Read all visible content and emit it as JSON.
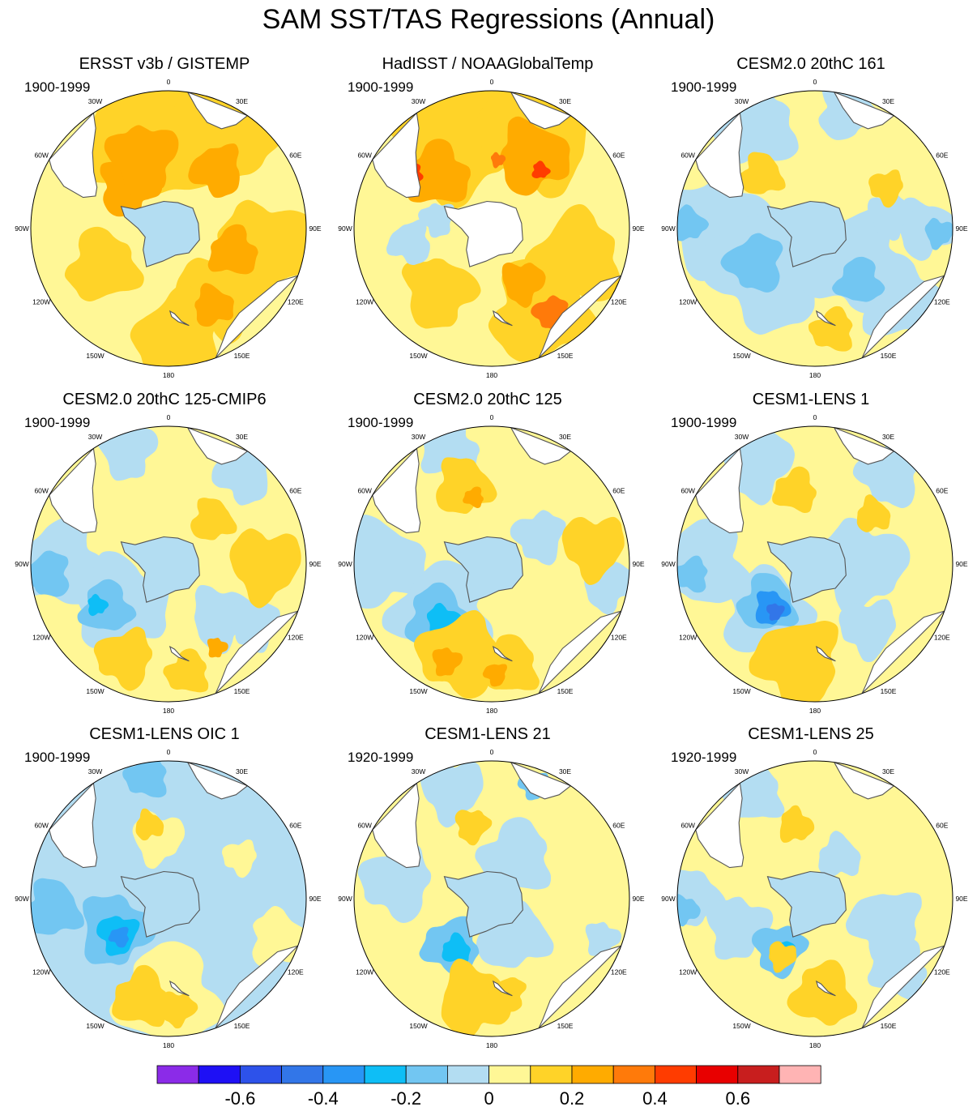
{
  "figure": {
    "title": "SAM SST/TAS Regressions (Annual)"
  },
  "chart_data": {
    "type": "heatmap",
    "projection": "south-polar-stereographic",
    "title": "SAM SST/TAS Regressions (Annual)",
    "colors": {
      "-0.7": "#8B2BE8",
      "-0.6": "#1E10F5",
      "-0.5": "#2D52EA",
      "-0.4": "#3276E8",
      "-0.3": "#2896F5",
      "-0.2": "#0EBEF6",
      "-0.1": "#72C6F2",
      "0.0": "#B3DDF2",
      "0.1": "#FFF796",
      "0.2": "#FFD328",
      "0.3": "#FFAB00",
      "0.4": "#FF7A0A",
      "0.5": "#FF3C00",
      "0.6": "#E80000",
      "0.7": "#C81E1E",
      "0.8": "#FFB4B4",
      "land": "#FFFFFF",
      "coast": "#555555"
    },
    "colorbar": {
      "levels": [
        -0.7,
        -0.6,
        -0.5,
        -0.4,
        -0.3,
        -0.2,
        -0.1,
        0,
        0.1,
        0.2,
        0.3,
        0.4,
        0.5,
        0.6,
        0.7
      ],
      "colors": [
        "#8B2BE8",
        "#1E10F5",
        "#2D52EA",
        "#3276E8",
        "#2896F5",
        "#0EBEF6",
        "#72C6F2",
        "#B3DDF2",
        "#FFF796",
        "#FFD328",
        "#FFAB00",
        "#FF7A0A",
        "#FF3C00",
        "#E80000",
        "#C81E1E",
        "#FFB4B4"
      ],
      "tick_labels": [
        "-0.6",
        "-0.4",
        "-0.2",
        "0",
        "0.2",
        "0.4",
        "0.6"
      ],
      "tick_values": [
        -0.6,
        -0.4,
        -0.2,
        0,
        0.2,
        0.4,
        0.6
      ]
    },
    "lon_labels": [
      "0",
      "30E",
      "60E",
      "90E",
      "120E",
      "150E",
      "180",
      "150W",
      "120W",
      "90W",
      "60W",
      "30W"
    ],
    "panels": [
      {
        "title": "ERSST v3b / GISTEMP",
        "period": "1900-1999",
        "background": 0.1,
        "antarctica": 0.0,
        "blobs": [
          {
            "r": 0.72,
            "lon": -10,
            "rr": 0.52,
            "v": 0.2,
            "a": 0.9
          },
          {
            "r": 0.8,
            "lon": 30,
            "rr": 0.38,
            "v": 0.2
          },
          {
            "r": 0.72,
            "lon": 100,
            "rr": 0.32,
            "v": 0.2
          },
          {
            "r": 0.6,
            "lon": 140,
            "rr": 0.3,
            "v": 0.2
          },
          {
            "r": 0.78,
            "lon": 175,
            "rr": 0.3,
            "v": 0.2
          },
          {
            "r": 0.55,
            "lon": -120,
            "rr": 0.25,
            "v": 0.2
          },
          {
            "r": 0.42,
            "lon": -45,
            "rr": 0.2,
            "v": 0.3
          },
          {
            "r": 0.55,
            "lon": -20,
            "rr": 0.24,
            "v": 0.3
          },
          {
            "r": 0.55,
            "lon": 40,
            "rr": 0.18,
            "v": 0.3
          },
          {
            "r": 0.5,
            "lon": 110,
            "rr": 0.17,
            "v": 0.3
          },
          {
            "r": 0.65,
            "lon": 150,
            "rr": 0.14,
            "v": 0.3
          }
        ]
      },
      {
        "title": "HadISST / NOAAGlobalTemp",
        "period": "1900-1999",
        "background": 0.1,
        "antarctica": "land",
        "blobs": [
          {
            "r": 0.75,
            "lon": -20,
            "rr": 0.45,
            "v": 0.2
          },
          {
            "r": 0.78,
            "lon": 25,
            "rr": 0.4,
            "v": 0.2
          },
          {
            "r": 0.65,
            "lon": 110,
            "rr": 0.32,
            "v": 0.2
          },
          {
            "r": 0.7,
            "lon": 150,
            "rr": 0.35,
            "v": 0.2
          },
          {
            "r": 0.6,
            "lon": -140,
            "rr": 0.25,
            "v": 0.2
          },
          {
            "r": 0.4,
            "lon": -80,
            "rr": 0.12,
            "v": 0.0
          },
          {
            "r": 0.6,
            "lon": -100,
            "rr": 0.15,
            "v": 0.0
          },
          {
            "r": 0.55,
            "lon": -45,
            "rr": 0.22,
            "v": 0.3
          },
          {
            "r": 0.6,
            "lon": 30,
            "rr": 0.25,
            "v": 0.3
          },
          {
            "r": 0.45,
            "lon": 150,
            "rr": 0.15,
            "v": 0.3
          },
          {
            "r": 0.75,
            "lon": 145,
            "rr": 0.12,
            "v": 0.4
          },
          {
            "r": 0.7,
            "lon": -55,
            "rr": 0.07,
            "v": 0.5
          },
          {
            "r": 0.55,
            "lon": 40,
            "rr": 0.06,
            "v": 0.5
          },
          {
            "r": 0.5,
            "lon": 5,
            "rr": 0.05,
            "v": 0.4
          }
        ]
      },
      {
        "title": "CESM2.0 20thC 161",
        "period": "1900-1999",
        "background": 0.1,
        "antarctica": 0.0,
        "blobs": [
          {
            "r": 0.85,
            "lon": -30,
            "rr": 0.28,
            "v": 0.0
          },
          {
            "r": 0.88,
            "lon": 15,
            "rr": 0.2,
            "v": 0.0
          },
          {
            "r": 0.7,
            "lon": -90,
            "rr": 0.35,
            "v": 0.0
          },
          {
            "r": 0.45,
            "lon": -130,
            "rr": 0.42,
            "v": 0.0
          },
          {
            "r": 0.4,
            "lon": 130,
            "rr": 0.35,
            "v": 0.0
          },
          {
            "r": 0.8,
            "lon": 130,
            "rr": 0.28,
            "v": 0.0
          },
          {
            "r": 0.8,
            "lon": 90,
            "rr": 0.2,
            "v": 0.0
          },
          {
            "r": 0.55,
            "lon": 80,
            "rr": 0.15,
            "v": 0.0
          },
          {
            "r": 0.5,
            "lon": -120,
            "rr": 0.2,
            "v": -0.1
          },
          {
            "r": 0.5,
            "lon": 140,
            "rr": 0.16,
            "v": -0.1
          },
          {
            "r": 0.92,
            "lon": -88,
            "rr": 0.12,
            "v": -0.1
          },
          {
            "r": 0.9,
            "lon": 92,
            "rr": 0.1,
            "v": -0.1
          },
          {
            "r": 0.6,
            "lon": 60,
            "rr": 0.12,
            "v": 0.2
          },
          {
            "r": 0.75,
            "lon": 170,
            "rr": 0.15,
            "v": 0.2
          },
          {
            "r": 0.55,
            "lon": -45,
            "rr": 0.15,
            "v": 0.2
          }
        ]
      },
      {
        "title": "CESM2.0 20thC 125-CMIP6",
        "period": "1900-1999",
        "background": 0.1,
        "antarctica": 0.0,
        "blobs": [
          {
            "r": 0.88,
            "lon": -20,
            "rr": 0.2,
            "v": 0.0
          },
          {
            "r": 0.85,
            "lon": 40,
            "rr": 0.2,
            "v": 0.0
          },
          {
            "r": 0.78,
            "lon": -90,
            "rr": 0.3,
            "v": 0.0
          },
          {
            "r": 0.45,
            "lon": -130,
            "rr": 0.32,
            "v": 0.0
          },
          {
            "r": 0.55,
            "lon": 135,
            "rr": 0.22,
            "v": 0.0
          },
          {
            "r": 0.75,
            "lon": 125,
            "rr": 0.18,
            "v": 0.0
          },
          {
            "r": 0.88,
            "lon": -95,
            "rr": 0.16,
            "v": -0.1
          },
          {
            "r": 0.55,
            "lon": -125,
            "rr": 0.18,
            "v": -0.1
          },
          {
            "r": 0.6,
            "lon": -120,
            "rr": 0.07,
            "v": -0.2
          },
          {
            "r": 0.7,
            "lon": 90,
            "rr": 0.25,
            "v": 0.2
          },
          {
            "r": 0.75,
            "lon": -155,
            "rr": 0.2,
            "v": 0.2
          },
          {
            "r": 0.8,
            "lon": 170,
            "rr": 0.15,
            "v": 0.2
          },
          {
            "r": 0.45,
            "lon": 45,
            "rr": 0.15,
            "v": 0.2
          },
          {
            "r": 0.7,
            "lon": 150,
            "rr": 0.07,
            "v": 0.3
          }
        ]
      },
      {
        "title": "CESM2.0 20thC 125",
        "period": "1900-1999",
        "background": 0.1,
        "antarctica": 0.0,
        "blobs": [
          {
            "r": 0.88,
            "lon": -20,
            "rr": 0.2,
            "v": 0.0
          },
          {
            "r": 0.8,
            "lon": -90,
            "rr": 0.3,
            "v": 0.0
          },
          {
            "r": 0.85,
            "lon": 100,
            "rr": 0.18,
            "v": 0.0
          },
          {
            "r": 0.4,
            "lon": 60,
            "rr": 0.18,
            "v": 0.0
          },
          {
            "r": 0.5,
            "lon": -135,
            "rr": 0.35,
            "v": 0.0
          },
          {
            "r": 0.55,
            "lon": -135,
            "rr": 0.22,
            "v": -0.1
          },
          {
            "r": 0.55,
            "lon": -140,
            "rr": 0.12,
            "v": -0.2
          },
          {
            "r": 0.75,
            "lon": 80,
            "rr": 0.22,
            "v": 0.2
          },
          {
            "r": 0.7,
            "lon": -160,
            "rr": 0.28,
            "v": 0.2
          },
          {
            "r": 0.75,
            "lon": 170,
            "rr": 0.2,
            "v": 0.2
          },
          {
            "r": 0.6,
            "lon": -20,
            "rr": 0.2,
            "v": 0.2
          },
          {
            "r": 0.78,
            "lon": -155,
            "rr": 0.1,
            "v": 0.3
          },
          {
            "r": 0.8,
            "lon": 178,
            "rr": 0.08,
            "v": 0.3
          },
          {
            "r": 0.5,
            "lon": -15,
            "rr": 0.07,
            "v": 0.3
          }
        ]
      },
      {
        "title": "CESM1-LENS 1",
        "period": "1900-1999",
        "background": 0.1,
        "antarctica": 0.0,
        "blobs": [
          {
            "r": 0.85,
            "lon": -30,
            "rr": 0.25,
            "v": 0.0
          },
          {
            "r": 0.85,
            "lon": 40,
            "rr": 0.22,
            "v": 0.0
          },
          {
            "r": 0.8,
            "lon": -90,
            "rr": 0.3,
            "v": 0.0
          },
          {
            "r": 0.5,
            "lon": -135,
            "rr": 0.3,
            "v": 0.0
          },
          {
            "r": 0.35,
            "lon": 90,
            "rr": 0.3,
            "v": 0.0
          },
          {
            "r": 0.6,
            "lon": 140,
            "rr": 0.2,
            "v": 0.0
          },
          {
            "r": 0.9,
            "lon": -95,
            "rr": 0.12,
            "v": -0.1
          },
          {
            "r": 0.45,
            "lon": -130,
            "rr": 0.2,
            "v": -0.1
          },
          {
            "r": 0.45,
            "lon": -135,
            "rr": 0.12,
            "v": -0.3
          },
          {
            "r": 0.45,
            "lon": -140,
            "rr": 0.06,
            "v": -0.4
          },
          {
            "r": 0.72,
            "lon": -170,
            "rr": 0.3,
            "v": 0.2
          },
          {
            "r": 0.55,
            "lon": -15,
            "rr": 0.15,
            "v": 0.2
          },
          {
            "r": 0.55,
            "lon": 50,
            "rr": 0.12,
            "v": 0.2
          }
        ]
      },
      {
        "title": "CESM1-LENS OIC 1",
        "period": "1900-1999",
        "background": 0.0,
        "antarctica": 0.0,
        "blobs": [
          {
            "r": 0.7,
            "lon": 180,
            "rr": 0.35,
            "v": 0.1
          },
          {
            "r": 0.85,
            "lon": 110,
            "rr": 0.2,
            "v": 0.1
          },
          {
            "r": 0.45,
            "lon": -10,
            "rr": 0.18,
            "v": 0.1
          },
          {
            "r": 0.6,
            "lon": 60,
            "rr": 0.12,
            "v": 0.1
          },
          {
            "r": 0.9,
            "lon": -10,
            "rr": 0.15,
            "v": -0.1
          },
          {
            "r": 0.85,
            "lon": -95,
            "rr": 0.2,
            "v": -0.1
          },
          {
            "r": 0.45,
            "lon": -120,
            "rr": 0.25,
            "v": -0.1
          },
          {
            "r": 0.45,
            "lon": -125,
            "rr": 0.14,
            "v": -0.2
          },
          {
            "r": 0.45,
            "lon": -128,
            "rr": 0.07,
            "v": -0.3
          },
          {
            "r": 0.75,
            "lon": -165,
            "rr": 0.2,
            "v": 0.2
          },
          {
            "r": 0.55,
            "lon": -15,
            "rr": 0.1,
            "v": 0.2
          },
          {
            "r": 0.8,
            "lon": 175,
            "rr": 0.12,
            "v": 0.2
          }
        ]
      },
      {
        "title": "CESM1-LENS 21",
        "period": "1920-1999",
        "background": 0.1,
        "antarctica": 0.0,
        "blobs": [
          {
            "r": 0.85,
            "lon": -20,
            "rr": 0.22,
            "v": 0.0
          },
          {
            "r": 0.7,
            "lon": -80,
            "rr": 0.25,
            "v": 0.0
          },
          {
            "r": 0.35,
            "lon": 30,
            "rr": 0.25,
            "v": 0.0
          },
          {
            "r": 0.3,
            "lon": 150,
            "rr": 0.25,
            "v": 0.0
          },
          {
            "r": 0.85,
            "lon": 110,
            "rr": 0.12,
            "v": 0.0
          },
          {
            "r": 0.88,
            "lon": 20,
            "rr": 0.1,
            "v": -0.1
          },
          {
            "r": 0.45,
            "lon": -140,
            "rr": 0.2,
            "v": -0.1
          },
          {
            "r": 0.45,
            "lon": -145,
            "rr": 0.1,
            "v": -0.2
          },
          {
            "r": 0.75,
            "lon": -170,
            "rr": 0.25,
            "v": 0.2
          },
          {
            "r": 0.55,
            "lon": -15,
            "rr": 0.12,
            "v": 0.2
          },
          {
            "r": 0.7,
            "lon": 170,
            "rr": 0.12,
            "v": 0.2
          }
        ]
      },
      {
        "title": "CESM1-LENS 25",
        "period": "1920-1999",
        "background": 0.1,
        "antarctica": 0.0,
        "blobs": [
          {
            "r": 0.88,
            "lon": -30,
            "rr": 0.2,
            "v": 0.0
          },
          {
            "r": 0.88,
            "lon": -90,
            "rr": 0.2,
            "v": 0.0
          },
          {
            "r": 0.6,
            "lon": -110,
            "rr": 0.22,
            "v": 0.0
          },
          {
            "r": 0.55,
            "lon": 110,
            "rr": 0.25,
            "v": 0.0
          },
          {
            "r": 0.8,
            "lon": 130,
            "rr": 0.2,
            "v": 0.0
          },
          {
            "r": 0.35,
            "lon": 30,
            "rr": 0.15,
            "v": 0.0
          },
          {
            "r": 0.95,
            "lon": -95,
            "rr": 0.1,
            "v": -0.1
          },
          {
            "r": 0.45,
            "lon": -145,
            "rr": 0.18,
            "v": -0.1
          },
          {
            "r": 0.45,
            "lon": -150,
            "rr": 0.08,
            "v": -0.2
          },
          {
            "r": 0.7,
            "lon": 175,
            "rr": 0.22,
            "v": 0.2
          },
          {
            "r": 0.55,
            "lon": -15,
            "rr": 0.12,
            "v": 0.2
          },
          {
            "r": 0.48,
            "lon": -150,
            "rr": 0.1,
            "v": 0.2
          }
        ]
      }
    ]
  }
}
